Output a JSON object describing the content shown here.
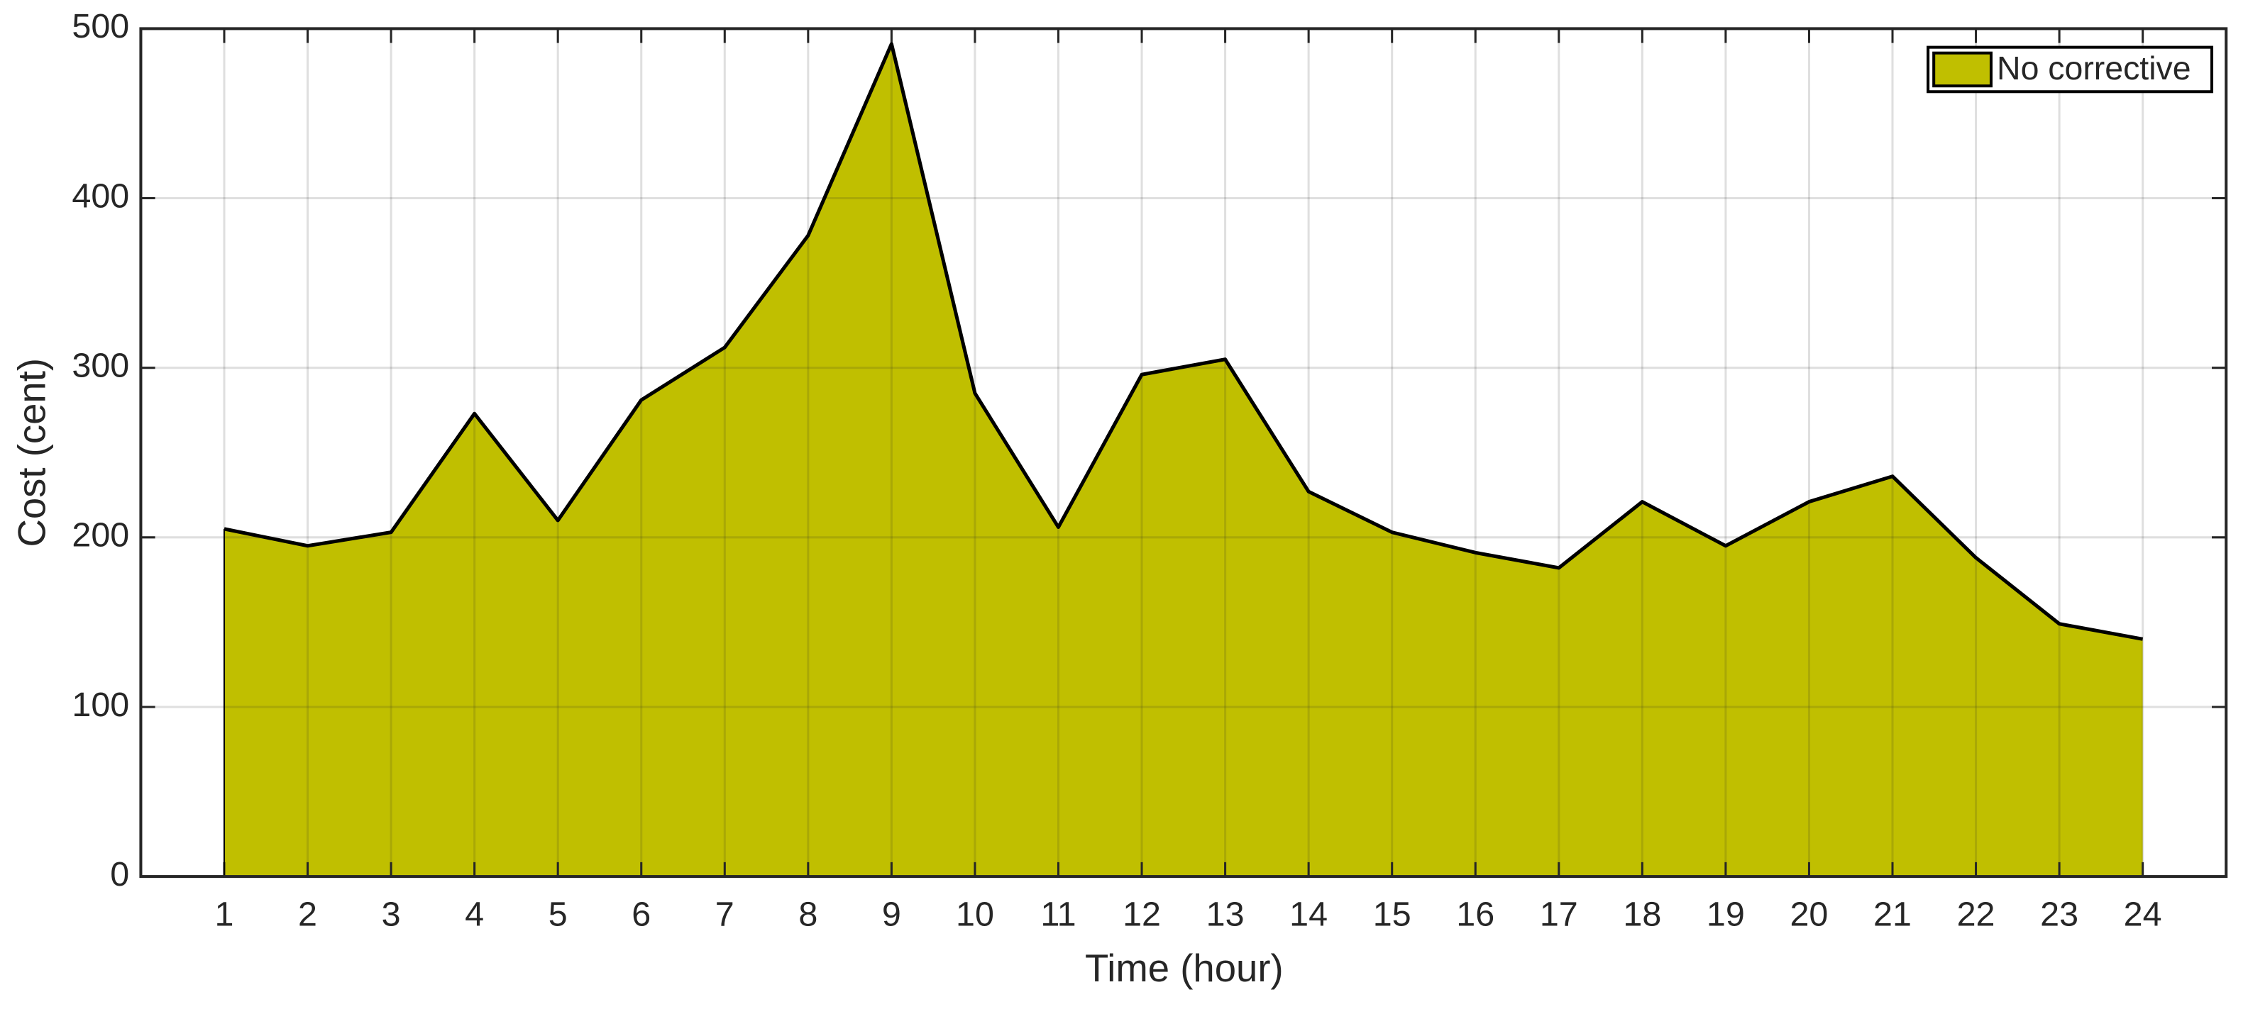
{
  "chart_data": {
    "type": "area",
    "xlabel": "Time (hour)",
    "ylabel": "Cost (cent)",
    "x": [
      1,
      2,
      3,
      4,
      5,
      6,
      7,
      8,
      9,
      10,
      11,
      12,
      13,
      14,
      15,
      16,
      17,
      18,
      19,
      20,
      21,
      22,
      23,
      24
    ],
    "series": [
      {
        "name": "No corrective",
        "color": "#c0bf00",
        "values": [
          205,
          195,
          203,
          273,
          210,
          281,
          312,
          378,
          491,
          285,
          206,
          296,
          305,
          227,
          203,
          191,
          182,
          221,
          195,
          221,
          236,
          188,
          149,
          140
        ]
      }
    ],
    "xlim": [
      0,
      25
    ],
    "xticks": [
      1,
      2,
      3,
      4,
      5,
      6,
      7,
      8,
      9,
      10,
      11,
      12,
      13,
      14,
      15,
      16,
      17,
      18,
      19,
      20,
      21,
      22,
      23,
      24
    ],
    "ylim": [
      0,
      500
    ],
    "yticks": [
      0,
      100,
      200,
      300,
      400,
      500
    ],
    "grid": true,
    "legend": "northeast"
  }
}
